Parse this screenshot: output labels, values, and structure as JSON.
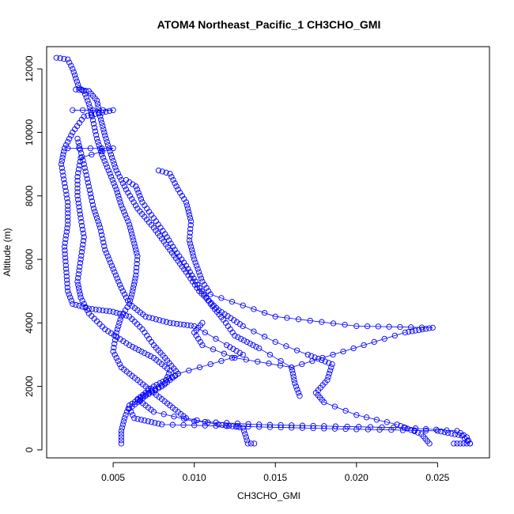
{
  "chart_data": {
    "type": "scatter",
    "title": "ATOM4 Northeast_Pacific_1 CH3CHO_GMI",
    "xlabel": "CH3CHO_GMI",
    "ylabel": "Altitude (m)",
    "xlim": [
      0.0009,
      0.0282
    ],
    "ylim": [
      -250,
      12700
    ],
    "xticks": [
      0.005,
      0.01,
      0.015,
      0.02,
      0.025
    ],
    "xtick_labels": [
      "0.005",
      "0.010",
      "0.015",
      "0.020",
      "0.025"
    ],
    "yticks": [
      0,
      2000,
      4000,
      6000,
      8000,
      10000,
      12000
    ],
    "ytick_labels": [
      "0",
      "2000",
      "4000",
      "6000",
      "8000",
      "10000",
      "12000"
    ],
    "grid": false,
    "marker": "open-circle",
    "color": "#0000ff",
    "series": [
      {
        "values": [
          [
            0.0015,
            12350
          ],
          [
            0.0022,
            12300
          ],
          [
            0.0025,
            12000
          ],
          [
            0.0029,
            11400
          ],
          [
            0.0032,
            11300
          ],
          [
            0.0035,
            10900
          ],
          [
            0.0037,
            10500
          ],
          [
            0.004,
            9800
          ],
          [
            0.0043,
            9300
          ],
          [
            0.0048,
            8700
          ],
          [
            0.0052,
            8200
          ],
          [
            0.0055,
            7700
          ],
          [
            0.006,
            7100
          ],
          [
            0.0063,
            6500
          ],
          [
            0.0065,
            6100
          ],
          [
            0.0064,
            5500
          ],
          [
            0.0062,
            5000
          ],
          [
            0.006,
            4600
          ],
          [
            0.0055,
            4200
          ],
          [
            0.0052,
            3700
          ],
          [
            0.005,
            3100
          ],
          [
            0.0055,
            2600
          ],
          [
            0.0065,
            2200
          ],
          [
            0.0075,
            1800
          ],
          [
            0.0085,
            1400
          ],
          [
            0.0095,
            1000
          ],
          [
            0.0115,
            800
          ],
          [
            0.013,
            700
          ],
          [
            0.0132,
            400
          ],
          [
            0.0133,
            200
          ],
          [
            0.0137,
            200
          ]
        ]
      },
      {
        "values": [
          [
            0.0027,
            11350
          ],
          [
            0.0035,
            11300
          ],
          [
            0.004,
            11000
          ],
          [
            0.0042,
            10500
          ],
          [
            0.0045,
            9900
          ],
          [
            0.0048,
            9400
          ],
          [
            0.0052,
            8800
          ],
          [
            0.0058,
            8200
          ],
          [
            0.0065,
            7600
          ],
          [
            0.0075,
            7000
          ],
          [
            0.0085,
            6300
          ],
          [
            0.0095,
            5600
          ],
          [
            0.0103,
            5000
          ],
          [
            0.0115,
            4400
          ],
          [
            0.013,
            3900
          ],
          [
            0.015,
            3400
          ],
          [
            0.017,
            3000
          ],
          [
            0.0185,
            2700
          ],
          [
            0.0182,
            2200
          ],
          [
            0.0175,
            1800
          ],
          [
            0.018,
            1500
          ],
          [
            0.02,
            1100
          ],
          [
            0.0225,
            800
          ],
          [
            0.024,
            500
          ],
          [
            0.0245,
            200
          ]
        ]
      },
      {
        "values": [
          [
            0.0058,
            8500
          ],
          [
            0.0064,
            8300
          ],
          [
            0.0068,
            7800
          ],
          [
            0.0075,
            7300
          ],
          [
            0.0082,
            6800
          ],
          [
            0.0088,
            6300
          ],
          [
            0.0095,
            5800
          ],
          [
            0.0102,
            5200
          ],
          [
            0.011,
            4600
          ],
          [
            0.0118,
            4100
          ],
          [
            0.0125,
            3600
          ],
          [
            0.014,
            3200
          ],
          [
            0.016,
            2600
          ],
          [
            0.0162,
            2100
          ],
          [
            0.0165,
            1700
          ]
        ]
      },
      {
        "values": [
          [
            0.0078,
            8800
          ],
          [
            0.0085,
            8700
          ],
          [
            0.009,
            8200
          ],
          [
            0.0095,
            7800
          ],
          [
            0.0098,
            7200
          ],
          [
            0.0097,
            6600
          ],
          [
            0.01,
            6000
          ],
          [
            0.0105,
            5300
          ],
          [
            0.011,
            4900
          ],
          [
            0.015,
            4200
          ],
          [
            0.02,
            3900
          ],
          [
            0.0247,
            3850
          ],
          [
            0.023,
            3700
          ],
          [
            0.016,
            2600
          ],
          [
            0.0125,
            2900
          ],
          [
            0.0105,
            3300
          ],
          [
            0.01,
            3700
          ],
          [
            0.0105,
            4000
          ]
        ]
      },
      {
        "values": [
          [
            0.0025,
            10700
          ],
          [
            0.005,
            10700
          ],
          [
            0.0032,
            10500
          ],
          [
            0.0025,
            10000
          ],
          [
            0.002,
            9500
          ],
          [
            0.0018,
            9000
          ],
          [
            0.002,
            8400
          ],
          [
            0.0022,
            7800
          ],
          [
            0.0022,
            7100
          ],
          [
            0.002,
            6400
          ],
          [
            0.0021,
            5700
          ],
          [
            0.0022,
            5000
          ],
          [
            0.0025,
            4600
          ],
          [
            0.0035,
            4450
          ],
          [
            0.005,
            4350
          ],
          [
            0.006,
            4200
          ],
          [
            0.0068,
            3800
          ],
          [
            0.0075,
            3300
          ],
          [
            0.0082,
            2900
          ],
          [
            0.009,
            2400
          ],
          [
            0.008,
            2000
          ],
          [
            0.007,
            1700
          ],
          [
            0.006,
            1300
          ],
          [
            0.0063,
            1000
          ],
          [
            0.008,
            800
          ],
          [
            0.012,
            750
          ],
          [
            0.02,
            650
          ],
          [
            0.025,
            600
          ],
          [
            0.0265,
            450
          ],
          [
            0.027,
            200
          ],
          [
            0.026,
            200
          ]
        ]
      },
      {
        "values": [
          [
            0.0022,
            9500
          ],
          [
            0.005,
            9500
          ],
          [
            0.003,
            9200
          ],
          [
            0.0028,
            8600
          ],
          [
            0.0028,
            8000
          ],
          [
            0.003,
            7300
          ],
          [
            0.0032,
            6700
          ],
          [
            0.003,
            6000
          ],
          [
            0.0028,
            5300
          ],
          [
            0.003,
            4800
          ],
          [
            0.0035,
            4300
          ],
          [
            0.0045,
            3800
          ],
          [
            0.006,
            3300
          ],
          [
            0.0075,
            2900
          ],
          [
            0.0085,
            2500
          ],
          [
            0.0082,
            2100
          ],
          [
            0.0072,
            1800
          ],
          [
            0.006,
            1400
          ],
          [
            0.0057,
            1000
          ],
          [
            0.0055,
            600
          ],
          [
            0.0055,
            200
          ]
        ]
      },
      {
        "values": [
          [
            0.0028,
            9800
          ],
          [
            0.0032,
            9000
          ],
          [
            0.0035,
            8300
          ],
          [
            0.0038,
            7600
          ],
          [
            0.0042,
            7000
          ],
          [
            0.0045,
            6300
          ],
          [
            0.005,
            5700
          ],
          [
            0.0055,
            5100
          ],
          [
            0.006,
            4600
          ],
          [
            0.007,
            4200
          ],
          [
            0.0085,
            4000
          ],
          [
            0.01,
            3900
          ],
          [
            0.012,
            3300
          ],
          [
            0.013,
            3000
          ],
          [
            0.011,
            2700
          ],
          [
            0.009,
            2400
          ],
          [
            0.0075,
            2000
          ],
          [
            0.0065,
            1600
          ],
          [
            0.0075,
            1200
          ],
          [
            0.01,
            900
          ],
          [
            0.014,
            800
          ],
          [
            0.018,
            750
          ],
          [
            0.023,
            700
          ],
          [
            0.0262,
            600
          ],
          [
            0.0268,
            400
          ],
          [
            0.027,
            200
          ]
        ]
      }
    ]
  }
}
